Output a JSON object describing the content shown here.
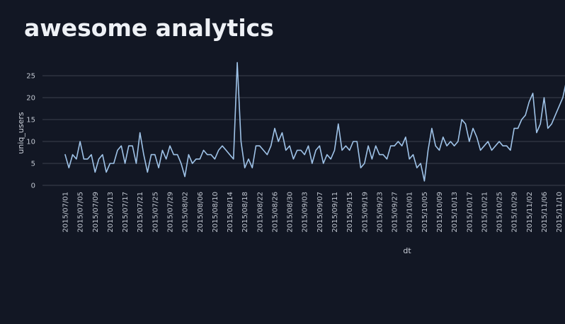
{
  "chart_data": {
    "type": "line",
    "title": "awesome analytics",
    "xlabel": "dt",
    "ylabel": "uniq_users",
    "yticks": [
      0,
      5,
      10,
      15,
      20,
      25
    ],
    "ylim": [
      0,
      29
    ],
    "grid": "horizontal-only",
    "legend": "none",
    "line_color": "#9fc3e8",
    "background_color": "#121724",
    "x_tick_labels": [
      "2015/07/01",
      "2015/07/05",
      "2015/07/09",
      "2015/07/13",
      "2015/07/17",
      "2015/07/21",
      "2015/07/25",
      "2015/07/29",
      "2015/08/02",
      "2015/08/06",
      "2015/08/10",
      "2015/08/14",
      "2015/08/18",
      "2015/08/22",
      "2015/08/26",
      "2015/08/30",
      "2015/09/03",
      "2015/09/07",
      "2015/09/11",
      "2015/09/15",
      "2015/09/19",
      "2015/09/23",
      "2015/09/27",
      "2015/10/01",
      "2015/10/05",
      "2015/10/09",
      "2015/10/13",
      "2015/10/17",
      "2015/10/21",
      "2015/10/25",
      "2015/10/29",
      "2015/11/02",
      "2015/11/06",
      "2015/11/10"
    ],
    "x_points_per_tick": 4,
    "series": [
      {
        "name": "uniq_users",
        "values": [
          7,
          4,
          7,
          6,
          10,
          6,
          6,
          7,
          3,
          6,
          7,
          3,
          5,
          5,
          8,
          9,
          5,
          9,
          9,
          5,
          12,
          7,
          3,
          7,
          7,
          4,
          8,
          6,
          9,
          7,
          7,
          5,
          2,
          7,
          5,
          6,
          6,
          8,
          7,
          7,
          6,
          8,
          9,
          8,
          7,
          6,
          28,
          10,
          4,
          6,
          4,
          9,
          9,
          8,
          7,
          9,
          13,
          10,
          12,
          8,
          9,
          6,
          8,
          8,
          7,
          9,
          5,
          8,
          9,
          5,
          7,
          6,
          8,
          14,
          8,
          9,
          8,
          10,
          10,
          4,
          5,
          9,
          6,
          9,
          7,
          7,
          6,
          9,
          9,
          10,
          9,
          11,
          6,
          7,
          4,
          5,
          1,
          8,
          13,
          9,
          8,
          11,
          9,
          10,
          9,
          10,
          15,
          14,
          10,
          13,
          11,
          8,
          9,
          10,
          8,
          9,
          10,
          9,
          9,
          8,
          13,
          13,
          15,
          16,
          19,
          21,
          12,
          14,
          20,
          13,
          14,
          16,
          18,
          20,
          24
        ]
      }
    ]
  }
}
